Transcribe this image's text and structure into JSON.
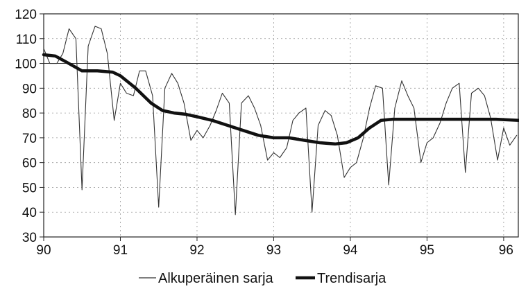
{
  "chart_data": {
    "type": "line",
    "title": "",
    "xlabel": "",
    "ylabel": "",
    "xlim": [
      90,
      96.2
    ],
    "ylim": [
      30,
      120
    ],
    "grid": "dashed",
    "reference_line": 100,
    "legend_position": "bottom",
    "x_ticks": [
      "90",
      "91",
      "92",
      "93",
      "94",
      "95",
      "96"
    ],
    "y_ticks": [
      "120",
      "110",
      "100",
      "90",
      "80",
      "70",
      "60",
      "50",
      "40",
      "30"
    ],
    "series": [
      {
        "name": "Alkuperäinen sarja",
        "style": "thin",
        "x": [
          90.0,
          90.08,
          90.17,
          90.25,
          90.33,
          90.42,
          90.5,
          90.58,
          90.67,
          90.75,
          90.83,
          90.92,
          91.0,
          91.08,
          91.17,
          91.25,
          91.33,
          91.42,
          91.5,
          91.58,
          91.67,
          91.75,
          91.83,
          91.92,
          92.0,
          92.08,
          92.17,
          92.25,
          92.33,
          92.42,
          92.5,
          92.58,
          92.67,
          92.75,
          92.83,
          92.92,
          93.0,
          93.08,
          93.17,
          93.25,
          93.33,
          93.42,
          93.5,
          93.58,
          93.67,
          93.75,
          93.83,
          93.92,
          94.0,
          94.08,
          94.17,
          94.25,
          94.33,
          94.42,
          94.5,
          94.58,
          94.67,
          94.75,
          94.83,
          94.92,
          95.0,
          95.08,
          95.17,
          95.25,
          95.33,
          95.42,
          95.5,
          95.58,
          95.67,
          95.75,
          95.83,
          95.92,
          96.0,
          96.08,
          96.17
        ],
        "y": [
          106,
          100,
          100,
          104,
          114,
          110,
          49,
          107,
          115,
          114,
          104,
          77,
          92,
          88,
          87,
          97,
          97,
          87,
          42,
          90,
          96,
          92,
          84,
          69,
          73,
          70,
          75,
          81,
          88,
          84,
          39,
          84,
          87,
          82,
          75,
          61,
          64,
          62,
          66,
          77,
          80,
          82,
          40,
          75,
          81,
          79,
          71,
          54,
          58,
          60,
          70,
          82,
          91,
          90,
          51,
          82,
          93,
          87,
          82,
          60,
          68,
          70,
          76,
          84,
          90,
          92,
          56,
          88,
          90,
          87,
          78,
          61,
          74,
          67,
          71
        ]
      },
      {
        "name": "Trendisarja",
        "style": "thick",
        "x": [
          90.0,
          90.15,
          90.3,
          90.5,
          90.7,
          90.9,
          91.0,
          91.2,
          91.4,
          91.55,
          91.7,
          91.85,
          92.0,
          92.2,
          92.4,
          92.6,
          92.8,
          93.0,
          93.2,
          93.4,
          93.6,
          93.8,
          93.95,
          94.1,
          94.25,
          94.4,
          94.55,
          94.8,
          95.0,
          95.3,
          95.6,
          95.9,
          96.2
        ],
        "y": [
          103.5,
          103,
          100.5,
          97,
          97,
          96.5,
          95,
          90,
          84,
          81,
          80,
          79.5,
          78.5,
          77,
          75,
          73,
          71,
          70,
          70,
          69,
          68,
          67.5,
          68,
          70,
          74,
          77,
          77.5,
          77.5,
          77.5,
          77.5,
          77.5,
          77.5,
          77
        ]
      }
    ]
  }
}
